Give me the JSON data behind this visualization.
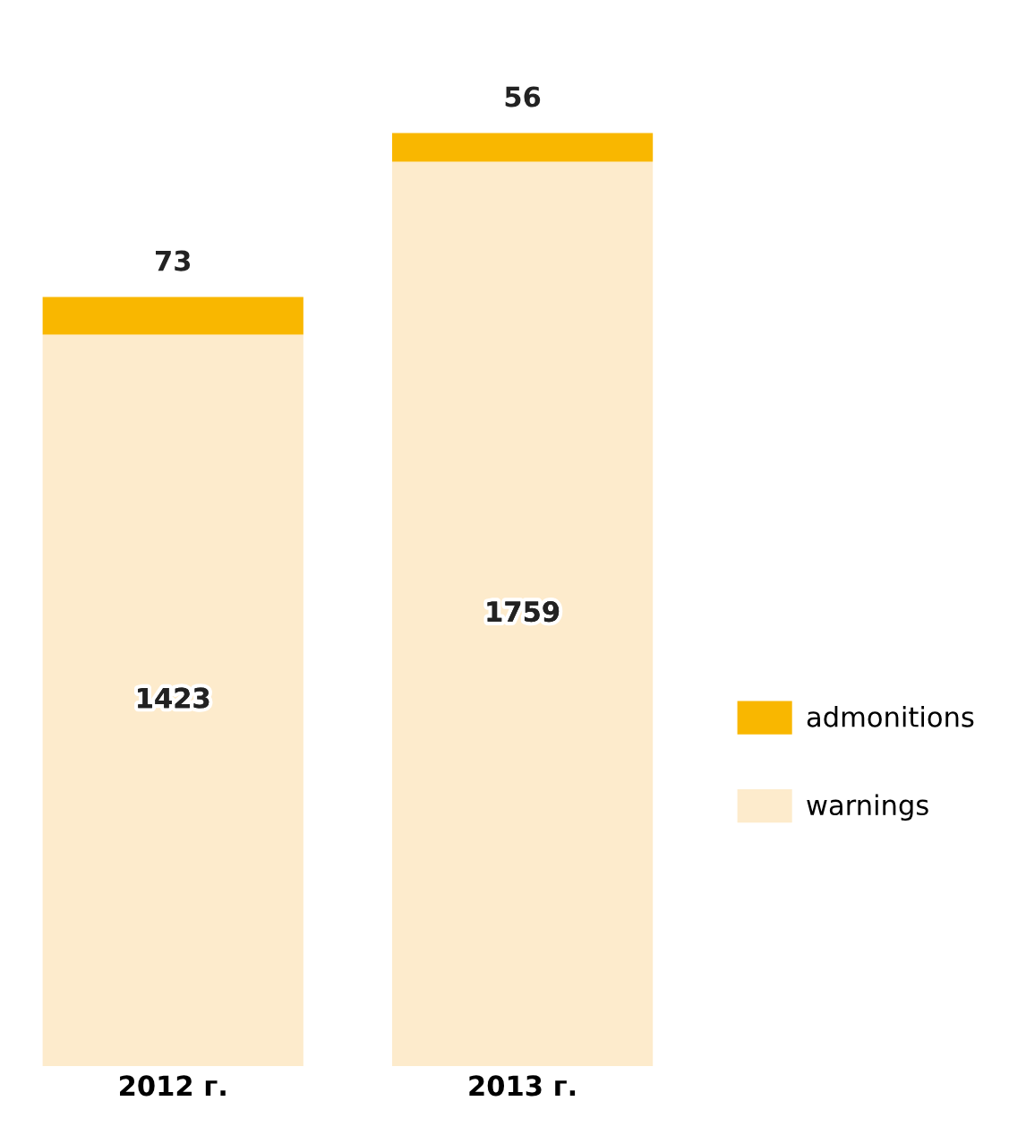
{
  "chart_data": {
    "type": "bar",
    "stacked": true,
    "data_labels": true,
    "legend": "right",
    "grid": false,
    "categories": [
      "2012 г.",
      "2013 г."
    ],
    "series": [
      {
        "name": "warnings",
        "color": "#fdebcc",
        "values": [
          1423,
          1759
        ]
      },
      {
        "name": "admonitions",
        "color": "#f9b700",
        "values": [
          73,
          56
        ]
      }
    ]
  }
}
